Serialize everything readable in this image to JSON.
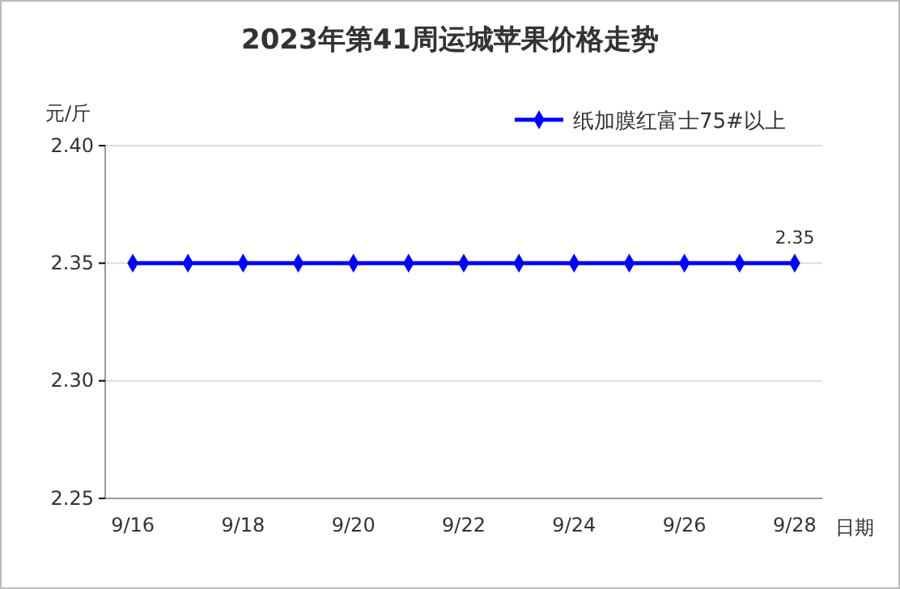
{
  "chart_data": {
    "type": "line",
    "title": "2023年第41周运城苹果价格走势",
    "ylabel": "元/斤",
    "xlabel": "日期",
    "categories": [
      "9/16",
      null,
      "9/18",
      null,
      "9/20",
      null,
      "9/22",
      null,
      "9/24",
      null,
      "9/26",
      null,
      "9/28"
    ],
    "series": [
      {
        "name": "纸加膜红富士75#以上",
        "color": "#0000ff",
        "values": [
          2.35,
          2.35,
          2.35,
          2.35,
          2.35,
          2.35,
          2.35,
          2.35,
          2.35,
          2.35,
          2.35,
          2.35,
          2.35
        ],
        "value_labels": [
          null,
          null,
          null,
          null,
          null,
          null,
          null,
          null,
          null,
          null,
          null,
          null,
          "2.35"
        ]
      }
    ],
    "ylim": [
      2.25,
      2.4
    ],
    "yticks": [
      {
        "value": 2.25,
        "label": "2.25"
      },
      {
        "value": 2.3,
        "label": "2.30"
      },
      {
        "value": 2.35,
        "label": "2.35"
      },
      {
        "value": 2.4,
        "label": "2.40"
      }
    ],
    "grid": "y",
    "legend": "top right",
    "marker": "diamond",
    "line_style": "solid"
  }
}
